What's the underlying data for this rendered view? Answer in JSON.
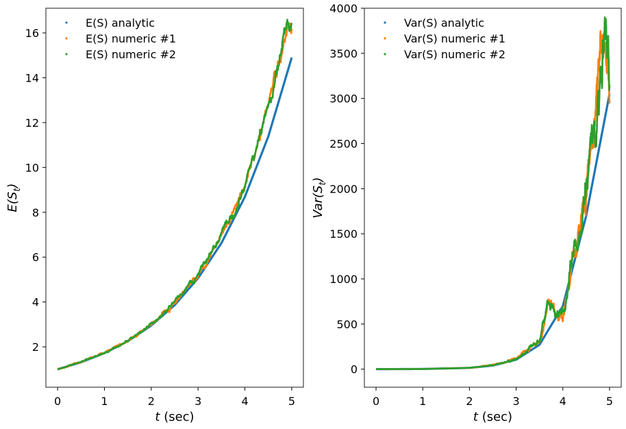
{
  "chart_data": [
    {
      "type": "scatter",
      "title": "",
      "xlabel": "t (sec)",
      "ylabel": "E(S_t)",
      "xlabel_parts": {
        "var": "t",
        "rest": " (sec)"
      },
      "ylabel_parts": {
        "pre": "E(S",
        "sub": "t",
        "post": ")"
      },
      "xlim": [
        -0.25,
        5.25
      ],
      "ylim": [
        0.2,
        17.1
      ],
      "xticks": [
        0,
        1,
        2,
        3,
        4,
        5
      ],
      "yticks": [
        2,
        4,
        6,
        8,
        10,
        12,
        14,
        16
      ],
      "legend_position": "upper-left",
      "grid": false,
      "series": [
        {
          "name": "E(S) analytic",
          "color": "#1f77b4",
          "model": "analytic",
          "x": [
            0,
            0.5,
            1,
            1.5,
            2,
            2.5,
            3,
            3.5,
            4,
            4.5,
            5
          ],
          "y": [
            1.0,
            1.31,
            1.72,
            2.25,
            2.95,
            3.86,
            5.06,
            6.63,
            8.69,
            11.38,
            14.9
          ]
        },
        {
          "name": "E(S) numeric #1",
          "color": "#ff7f0e",
          "model": "numeric",
          "x": [
            0,
            0.5,
            1,
            1.5,
            2,
            2.5,
            3,
            3.5,
            4,
            4.5,
            4.8,
            4.9,
            5
          ],
          "y": [
            1.0,
            1.32,
            1.73,
            2.27,
            3.0,
            4.02,
            5.2,
            6.95,
            9.1,
            12.8,
            15.4,
            16.2,
            16.2
          ]
        },
        {
          "name": "E(S) numeric #2",
          "color": "#2ca02c",
          "model": "numeric",
          "x": [
            0,
            0.5,
            1,
            1.5,
            2,
            2.5,
            3,
            3.5,
            4,
            4.5,
            4.8,
            4.9,
            5
          ],
          "y": [
            1.0,
            1.32,
            1.73,
            2.27,
            3.0,
            4.02,
            5.2,
            6.95,
            9.1,
            12.8,
            15.4,
            16.2,
            16.2
          ]
        }
      ]
    },
    {
      "type": "scatter",
      "title": "",
      "xlabel": "t (sec)",
      "ylabel": "Var(S_t)",
      "xlabel_parts": {
        "var": "t",
        "rest": " (sec)"
      },
      "ylabel_parts": {
        "pre": "Var(S",
        "sub": "t",
        "post": ")"
      },
      "xlim": [
        -0.25,
        5.25
      ],
      "ylim": [
        -200,
        4000
      ],
      "xticks": [
        0,
        1,
        2,
        3,
        4,
        5
      ],
      "yticks": [
        0,
        500,
        1000,
        1500,
        2000,
        2500,
        3000,
        3500,
        4000
      ],
      "legend_position": "upper-left",
      "grid": false,
      "series": [
        {
          "name": "Var(S) analytic",
          "color": "#1f77b4",
          "model": "analytic",
          "x": [
            0,
            1,
            2,
            2.5,
            3,
            3.5,
            4,
            4.5,
            5
          ],
          "y": [
            0,
            2,
            14,
            40,
            105,
            270,
            700,
            1700,
            3050
          ]
        },
        {
          "name": "Var(S) numeric #1",
          "color": "#ff7f0e",
          "model": "numeric",
          "x": [
            0,
            1,
            2,
            2.5,
            3,
            3.5,
            3.7,
            3.85,
            4,
            4.2,
            4.4,
            4.6,
            4.75,
            4.9,
            5
          ],
          "y": [
            0,
            2,
            15,
            45,
            115,
            320,
            750,
            600,
            600,
            1200,
            1600,
            2500,
            3200,
            3800,
            3100
          ]
        },
        {
          "name": "Var(S) numeric #2",
          "color": "#2ca02c",
          "model": "numeric",
          "x": [
            0,
            1,
            2,
            2.5,
            3,
            3.5,
            3.7,
            3.85,
            4,
            4.2,
            4.4,
            4.6,
            4.75,
            4.9,
            5
          ],
          "y": [
            0,
            2,
            15,
            45,
            115,
            320,
            750,
            600,
            600,
            1200,
            1600,
            2500,
            3200,
            3800,
            3100
          ]
        }
      ]
    }
  ]
}
